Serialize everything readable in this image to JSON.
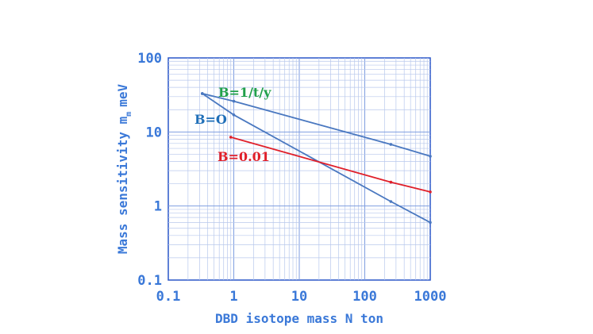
{
  "chart_data": {
    "type": "line",
    "xscale": "log",
    "yscale": "log",
    "xlim": [
      0.1,
      1000
    ],
    "ylim": [
      0.1,
      100
    ],
    "xlabel": "DBD isotope mass N ton",
    "ylabel": "Mass sensitivity m",
    "ylabel_sub": "m",
    "ylabel_unit": "meV",
    "xticks": [
      "0.1",
      "1",
      "10",
      "100",
      "1000"
    ],
    "yticks": [
      "0.1",
      "1",
      "10",
      "100"
    ],
    "grid": true,
    "series": [
      {
        "name": "B=1/t/y",
        "color": "#4a78c0",
        "label_color": "#21a04a",
        "x": [
          0.33,
          1,
          250,
          1000
        ],
        "y": [
          33,
          26,
          6.8,
          4.7
        ]
      },
      {
        "name": "B=O",
        "color": "#4a78c0",
        "label_color": "#1f6fb8",
        "x": [
          0.33,
          1,
          250,
          1000
        ],
        "y": [
          33,
          17,
          1.15,
          0.6
        ]
      },
      {
        "name": "B=0.01",
        "color": "#e0202a",
        "label_color": "#e0202a",
        "x": [
          0.9,
          250,
          1000
        ],
        "y": [
          8.5,
          2.1,
          1.55
        ]
      }
    ]
  }
}
